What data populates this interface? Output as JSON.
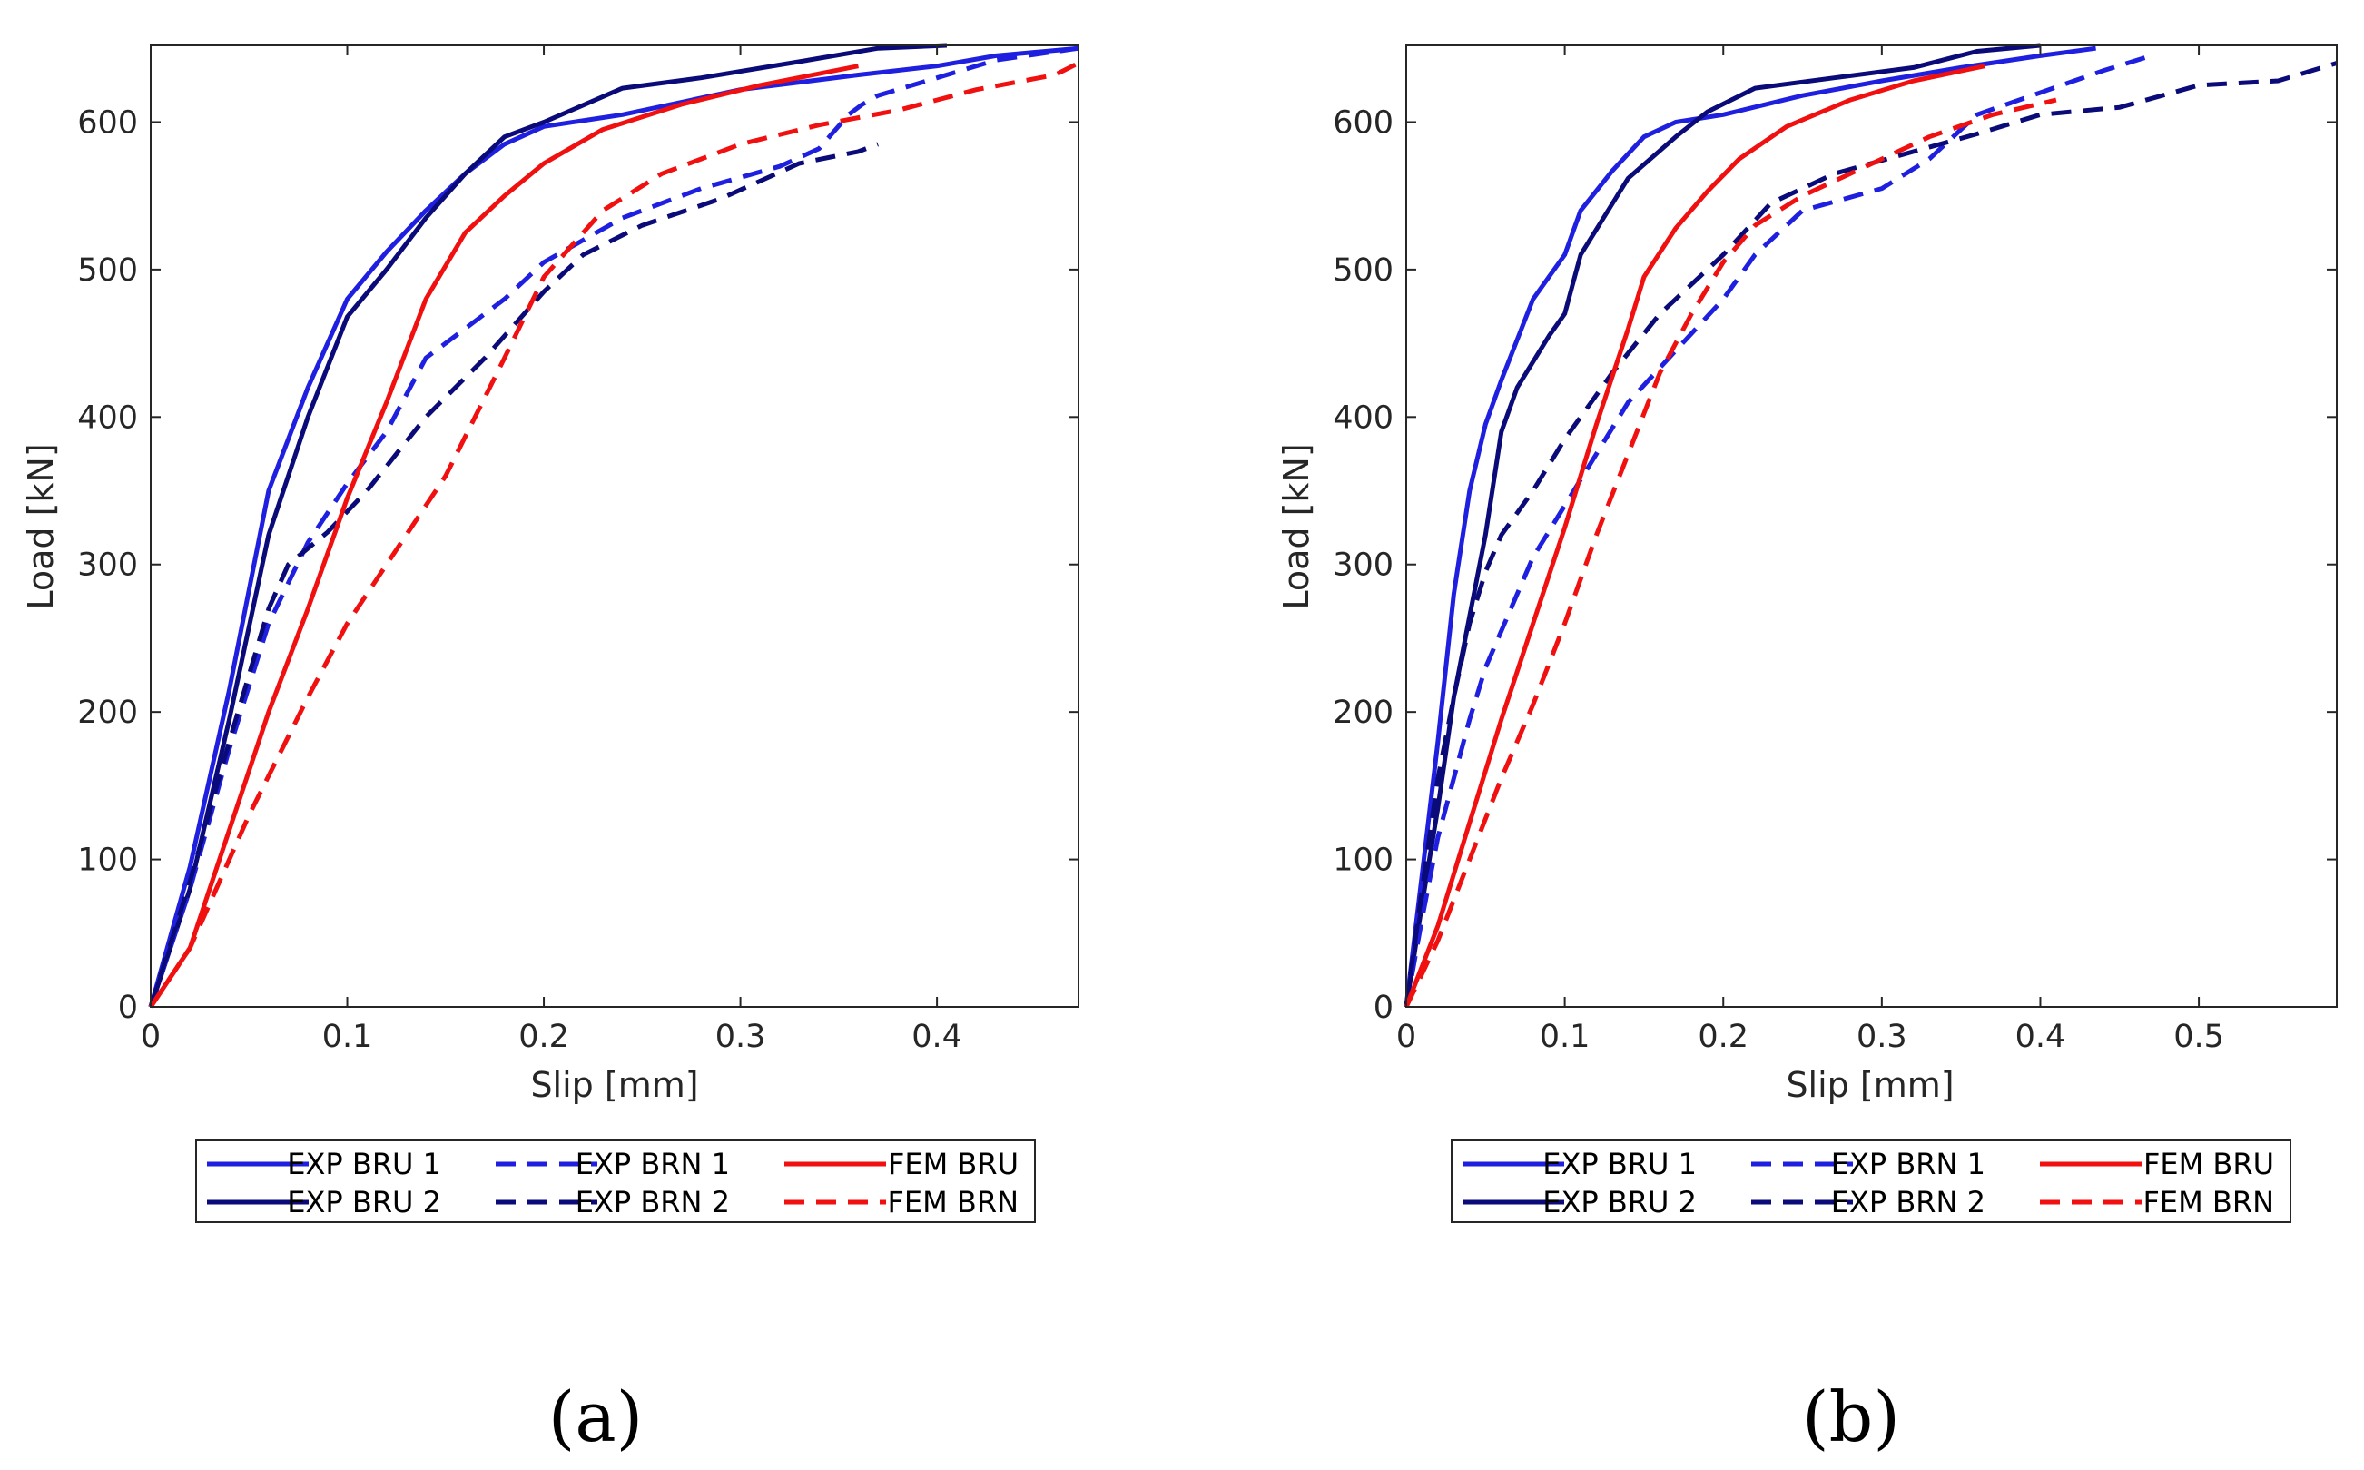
{
  "chart_data": [
    {
      "type": "line",
      "panel_label": "(a)",
      "xlabel": "Slip [mm]",
      "ylabel": "Load [kN]",
      "xlim": [
        0,
        0.472
      ],
      "ylim": [
        0,
        652
      ],
      "xticks": [
        0,
        0.1,
        0.2,
        0.3,
        0.4
      ],
      "xtick_labels": [
        "0",
        "0.1",
        "0.2",
        "0.3",
        "0.4"
      ],
      "yticks": [
        0,
        100,
        200,
        300,
        400,
        500,
        600
      ],
      "ytick_labels": [
        "0",
        "100",
        "200",
        "300",
        "400",
        "500",
        "600"
      ],
      "grid": false,
      "legend_position": "below plot, 3 columns",
      "series": [
        {
          "name": "EXP BRU 1",
          "color": "#1f1fe0",
          "dash": "solid",
          "points": [
            [
              0,
              0
            ],
            [
              0.02,
              95
            ],
            [
              0.04,
              215
            ],
            [
              0.06,
              350
            ],
            [
              0.08,
              420
            ],
            [
              0.1,
              480
            ],
            [
              0.12,
              512
            ],
            [
              0.14,
              540
            ],
            [
              0.16,
              565
            ],
            [
              0.18,
              585
            ],
            [
              0.2,
              597
            ],
            [
              0.24,
              605
            ],
            [
              0.3,
              622
            ],
            [
              0.36,
              632
            ],
            [
              0.4,
              638
            ],
            [
              0.43,
              645
            ],
            [
              0.472,
              650
            ]
          ]
        },
        {
          "name": "EXP BRU 2",
          "color": "#0a0a78",
          "dash": "solid",
          "points": [
            [
              0,
              0
            ],
            [
              0.02,
              80
            ],
            [
              0.04,
              195
            ],
            [
              0.06,
              320
            ],
            [
              0.08,
              400
            ],
            [
              0.1,
              468
            ],
            [
              0.12,
              500
            ],
            [
              0.14,
              535
            ],
            [
              0.16,
              565
            ],
            [
              0.18,
              590
            ],
            [
              0.2,
              600
            ],
            [
              0.24,
              623
            ],
            [
              0.28,
              630
            ],
            [
              0.33,
              641
            ],
            [
              0.37,
              650
            ],
            [
              0.405,
              652
            ]
          ]
        },
        {
          "name": "EXP BRN 1",
          "color": "#1f1fe0",
          "dash": "dashed",
          "points": [
            [
              0,
              0
            ],
            [
              0.02,
              80
            ],
            [
              0.04,
              175
            ],
            [
              0.06,
              260
            ],
            [
              0.08,
              315
            ],
            [
              0.1,
              355
            ],
            [
              0.12,
              390
            ],
            [
              0.14,
              440
            ],
            [
              0.16,
              460
            ],
            [
              0.18,
              480
            ],
            [
              0.2,
              505
            ],
            [
              0.24,
              535
            ],
            [
              0.28,
              555
            ],
            [
              0.32,
              570
            ],
            [
              0.34,
              582
            ],
            [
              0.355,
              605
            ],
            [
              0.362,
              612
            ],
            [
              0.37,
              618
            ],
            [
              0.4,
              630
            ],
            [
              0.43,
              642
            ],
            [
              0.472,
              650
            ]
          ]
        },
        {
          "name": "EXP BRN 2",
          "color": "#0a0a78",
          "dash": "dashed",
          "points": [
            [
              0,
              0
            ],
            [
              0.02,
              85
            ],
            [
              0.04,
              180
            ],
            [
              0.06,
              270
            ],
            [
              0.07,
              300
            ],
            [
              0.09,
              322
            ],
            [
              0.11,
              350
            ],
            [
              0.14,
              400
            ],
            [
              0.17,
              440
            ],
            [
              0.2,
              485
            ],
            [
              0.22,
              510
            ],
            [
              0.25,
              530
            ],
            [
              0.29,
              548
            ],
            [
              0.33,
              572
            ],
            [
              0.36,
              580
            ],
            [
              0.37,
              585
            ]
          ]
        },
        {
          "name": "FEM BRU",
          "color": "#f01010",
          "dash": "solid",
          "points": [
            [
              0,
              0
            ],
            [
              0.02,
              40
            ],
            [
              0.04,
              120
            ],
            [
              0.06,
              200
            ],
            [
              0.08,
              270
            ],
            [
              0.1,
              345
            ],
            [
              0.12,
              410
            ],
            [
              0.14,
              480
            ],
            [
              0.16,
              525
            ],
            [
              0.18,
              550
            ],
            [
              0.2,
              572
            ],
            [
              0.23,
              595
            ],
            [
              0.27,
              612
            ],
            [
              0.31,
              625
            ],
            [
              0.36,
              638
            ]
          ]
        },
        {
          "name": "FEM BRN",
          "color": "#f01010",
          "dash": "dashed",
          "points": [
            [
              0,
              0
            ],
            [
              0.02,
              40
            ],
            [
              0.05,
              130
            ],
            [
              0.08,
              210
            ],
            [
              0.1,
              260
            ],
            [
              0.12,
              300
            ],
            [
              0.15,
              360
            ],
            [
              0.18,
              440
            ],
            [
              0.2,
              495
            ],
            [
              0.23,
              540
            ],
            [
              0.26,
              565
            ],
            [
              0.3,
              585
            ],
            [
              0.34,
              598
            ],
            [
              0.38,
              608
            ],
            [
              0.42,
              622
            ],
            [
              0.46,
              632
            ],
            [
              0.472,
              640
            ]
          ]
        }
      ]
    },
    {
      "type": "line",
      "panel_label": "(b)",
      "xlabel": "Slip [mm]",
      "ylabel": "Load [kN]",
      "xlim": [
        0,
        0.587
      ],
      "ylim": [
        0,
        652
      ],
      "xticks": [
        0,
        0.1,
        0.2,
        0.3,
        0.4,
        0.5
      ],
      "xtick_labels": [
        "0",
        "0.1",
        "0.2",
        "0.3",
        "0.4",
        "0.5"
      ],
      "yticks": [
        0,
        100,
        200,
        300,
        400,
        500,
        600
      ],
      "ytick_labels": [
        "0",
        "100",
        "200",
        "300",
        "400",
        "500",
        "600"
      ],
      "grid": false,
      "legend_position": "below plot, 3 columns",
      "series": [
        {
          "name": "EXP BRU 1",
          "color": "#1f1fe0",
          "dash": "solid",
          "points": [
            [
              0,
              0
            ],
            [
              0.01,
              90
            ],
            [
              0.02,
              180
            ],
            [
              0.03,
              280
            ],
            [
              0.04,
              350
            ],
            [
              0.05,
              395
            ],
            [
              0.06,
              425
            ],
            [
              0.08,
              480
            ],
            [
              0.1,
              510
            ],
            [
              0.11,
              540
            ],
            [
              0.13,
              567
            ],
            [
              0.15,
              590
            ],
            [
              0.17,
              600
            ],
            [
              0.2,
              605
            ],
            [
              0.25,
              618
            ],
            [
              0.3,
              628
            ],
            [
              0.35,
              637
            ],
            [
              0.4,
              645
            ],
            [
              0.435,
              650
            ]
          ]
        },
        {
          "name": "EXP BRU 2",
          "color": "#0a0a78",
          "dash": "solid",
          "points": [
            [
              0,
              0
            ],
            [
              0.01,
              70
            ],
            [
              0.02,
              135
            ],
            [
              0.03,
              210
            ],
            [
              0.04,
              265
            ],
            [
              0.05,
              320
            ],
            [
              0.06,
              390
            ],
            [
              0.07,
              420
            ],
            [
              0.09,
              455
            ],
            [
              0.1,
              470
            ],
            [
              0.11,
              510
            ],
            [
              0.14,
              562
            ],
            [
              0.17,
              590
            ],
            [
              0.19,
              607
            ],
            [
              0.22,
              623
            ],
            [
              0.27,
              630
            ],
            [
              0.32,
              637
            ],
            [
              0.36,
              648
            ],
            [
              0.4,
              652
            ]
          ]
        },
        {
          "name": "EXP BRN 1",
          "color": "#1f1fe0",
          "dash": "dashed",
          "points": [
            [
              0,
              0
            ],
            [
              0.01,
              60
            ],
            [
              0.02,
              115
            ],
            [
              0.03,
              155
            ],
            [
              0.04,
              195
            ],
            [
              0.05,
              230
            ],
            [
              0.06,
              255
            ],
            [
              0.08,
              305
            ],
            [
              0.1,
              340
            ],
            [
              0.12,
              375
            ],
            [
              0.14,
              410
            ],
            [
              0.17,
              445
            ],
            [
              0.2,
              480
            ],
            [
              0.22,
              510
            ],
            [
              0.25,
              540
            ],
            [
              0.3,
              555
            ],
            [
              0.33,
              575
            ],
            [
              0.36,
              605
            ],
            [
              0.4,
              620
            ],
            [
              0.44,
              635
            ],
            [
              0.47,
              645
            ]
          ]
        },
        {
          "name": "EXP BRN 2",
          "color": "#0a0a78",
          "dash": "dashed",
          "points": [
            [
              0,
              0
            ],
            [
              0.01,
              80
            ],
            [
              0.02,
              155
            ],
            [
              0.03,
              210
            ],
            [
              0.04,
              260
            ],
            [
              0.05,
              295
            ],
            [
              0.06,
              320
            ],
            [
              0.08,
              350
            ],
            [
              0.1,
              385
            ],
            [
              0.13,
              430
            ],
            [
              0.16,
              470
            ],
            [
              0.2,
              510
            ],
            [
              0.23,
              545
            ],
            [
              0.27,
              565
            ],
            [
              0.32,
              580
            ],
            [
              0.36,
              592
            ],
            [
              0.4,
              605
            ],
            [
              0.45,
              610
            ],
            [
              0.5,
              625
            ],
            [
              0.55,
              628
            ],
            [
              0.587,
              640
            ]
          ]
        },
        {
          "name": "FEM BRU",
          "color": "#f01010",
          "dash": "solid",
          "points": [
            [
              0,
              0
            ],
            [
              0.02,
              55
            ],
            [
              0.04,
              125
            ],
            [
              0.06,
              195
            ],
            [
              0.08,
              260
            ],
            [
              0.1,
              325
            ],
            [
              0.12,
              395
            ],
            [
              0.14,
              460
            ],
            [
              0.15,
              495
            ],
            [
              0.17,
              528
            ],
            [
              0.19,
              553
            ],
            [
              0.21,
              575
            ],
            [
              0.24,
              597
            ],
            [
              0.28,
              615
            ],
            [
              0.32,
              628
            ],
            [
              0.365,
              638
            ]
          ]
        },
        {
          "name": "FEM BRN",
          "color": "#f01010",
          "dash": "dashed",
          "points": [
            [
              0,
              0
            ],
            [
              0.02,
              45
            ],
            [
              0.04,
              100
            ],
            [
              0.06,
              155
            ],
            [
              0.08,
              205
            ],
            [
              0.1,
              260
            ],
            [
              0.12,
              320
            ],
            [
              0.14,
              375
            ],
            [
              0.16,
              430
            ],
            [
              0.18,
              470
            ],
            [
              0.2,
              505
            ],
            [
              0.22,
              530
            ],
            [
              0.25,
              550
            ],
            [
              0.29,
              570
            ],
            [
              0.33,
              590
            ],
            [
              0.37,
              605
            ],
            [
              0.41,
              615
            ]
          ]
        }
      ]
    }
  ]
}
